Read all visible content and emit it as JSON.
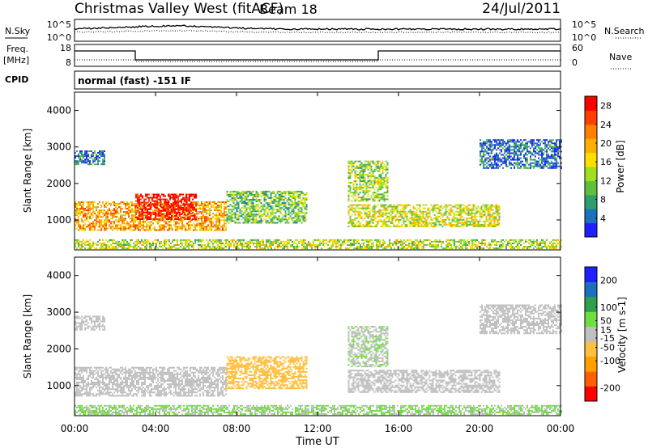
{
  "header": {
    "site": "Christmas Valley West (fitACF)",
    "beam": "Beam 18",
    "date": "24/Jul/2011"
  },
  "strip": {
    "nsky_label": "N.Sky",
    "nsearch_label": "N.Search",
    "noise_left_ticks": [
      "10^5",
      "10^0"
    ],
    "noise_right_ticks": [
      "10^5",
      "10^0"
    ],
    "freq_label": "Freq.",
    "freq_unit": "[MHz]",
    "freq_ticks": [
      "18",
      "8"
    ],
    "nave_label": "Nave",
    "nave_ticks": [
      "60",
      "0"
    ],
    "cpid_label": "CPID",
    "cpid_text": "normal (fast) -151 IF"
  },
  "chart_data": [
    {
      "type": "heatmap",
      "title": "Power",
      "xlabel": "Time UT",
      "ylabel": "Slant Range [km]",
      "x_ticks": [
        "00:00",
        "04:00",
        "08:00",
        "12:00",
        "16:00",
        "20:00",
        "00:00"
      ],
      "xlim": [
        0,
        24
      ],
      "y_ticks": [
        "1000",
        "2000",
        "3000",
        "4000"
      ],
      "ylim": [
        180,
        4500
      ],
      "colorbar_label": "Power [dB]",
      "colorbar_ticks": [
        "28",
        "24",
        "20",
        "16",
        "12",
        "8",
        "4"
      ],
      "colorbar_range": [
        0,
        30
      ],
      "colors": [
        "#1f1fff",
        "#1f6fbf",
        "#2f9f6f",
        "#5fbf3f",
        "#9fdf1f",
        "#ffdf00",
        "#ffaf00",
        "#ff7f00",
        "#ff3f00",
        "#ff0000"
      ],
      "echo_regions": [
        {
          "t0": 0.0,
          "t1": 7.5,
          "r0": 700,
          "r1": 1500,
          "power": 20
        },
        {
          "t0": 3.0,
          "t1": 6.0,
          "r0": 1000,
          "r1": 1700,
          "power": 29
        },
        {
          "t0": 7.5,
          "t1": 11.5,
          "r0": 900,
          "r1": 1800,
          "power": 11
        },
        {
          "t0": 13.5,
          "t1": 21.0,
          "r0": 800,
          "r1": 1400,
          "power": 15
        },
        {
          "t0": 13.5,
          "t1": 15.5,
          "r0": 1500,
          "r1": 2600,
          "power": 13
        },
        {
          "t0": 0.0,
          "t1": 24.0,
          "r0": 200,
          "r1": 450,
          "power": 14
        },
        {
          "t0": 0.0,
          "t1": 1.5,
          "r0": 2500,
          "r1": 2900,
          "power": 6
        },
        {
          "t0": 20.0,
          "t1": 24.0,
          "r0": 2400,
          "r1": 3200,
          "power": 5
        }
      ]
    },
    {
      "type": "heatmap",
      "title": "Velocity",
      "xlabel": "Time UT",
      "ylabel": "Slant Range [km]",
      "x_ticks": [
        "00:00",
        "04:00",
        "08:00",
        "12:00",
        "16:00",
        "20:00",
        "00:00"
      ],
      "xlim": [
        0,
        24
      ],
      "y_ticks": [
        "1000",
        "2000",
        "3000",
        "4000"
      ],
      "ylim": [
        180,
        4500
      ],
      "colorbar_label": "Velocity [m s-1]",
      "colorbar_ticks": [
        "200",
        "100",
        "50",
        "15",
        "-15",
        "-50",
        "-100",
        "-200"
      ],
      "colorbar_range": [
        -250,
        250
      ],
      "colors": [
        "#ff0000",
        "#ff5f00",
        "#ff9f00",
        "#ffbf3f",
        "#c0c0c0",
        "#6fdf3f",
        "#2f9f4f",
        "#1f6fbf",
        "#1f1fff"
      ],
      "echo_regions": [
        {
          "t0": 0.0,
          "t1": 7.5,
          "r0": 700,
          "r1": 1500,
          "velocity": 0
        },
        {
          "t0": 7.5,
          "t1": 11.5,
          "r0": 900,
          "r1": 1800,
          "velocity": -60
        },
        {
          "t0": 13.5,
          "t1": 21.0,
          "r0": 800,
          "r1": 1400,
          "velocity": 0
        },
        {
          "t0": 13.5,
          "t1": 15.5,
          "r0": 1500,
          "r1": 2600,
          "velocity": 20
        },
        {
          "t0": 0.0,
          "t1": 24.0,
          "r0": 200,
          "r1": 450,
          "velocity": 30
        },
        {
          "t0": 0.0,
          "t1": 1.5,
          "r0": 2500,
          "r1": 2900,
          "velocity": 0
        },
        {
          "t0": 20.0,
          "t1": 24.0,
          "r0": 2400,
          "r1": 3200,
          "velocity": 0
        }
      ]
    }
  ]
}
